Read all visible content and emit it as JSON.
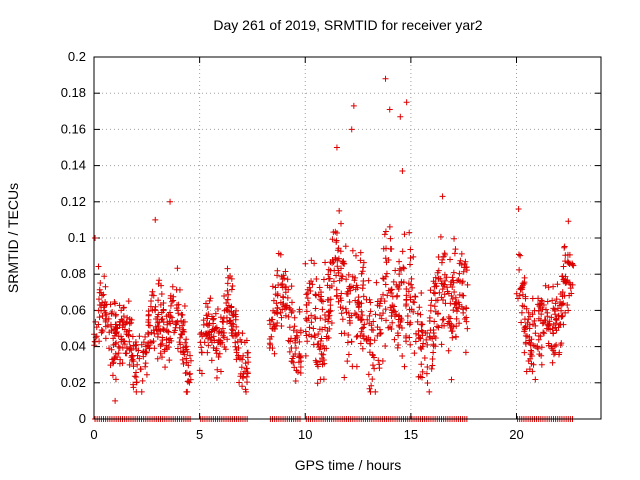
{
  "chart_data": {
    "type": "scatter",
    "title": "Day 261 of 2019, SRMTID for receiver yar2",
    "xlabel": "GPS time / hours",
    "ylabel": "SRMTID / TECUs",
    "xlim": [
      0,
      24
    ],
    "ylim": [
      0,
      0.2
    ],
    "x_ticks": [
      0,
      5,
      10,
      15,
      20
    ],
    "x_tick_labels": [
      "0",
      "5",
      "10",
      "15",
      "20"
    ],
    "y_ticks": [
      0,
      0.02,
      0.04,
      0.06,
      0.08,
      0.1,
      0.12,
      0.14,
      0.16,
      0.18,
      0.2
    ],
    "y_tick_labels": [
      "0",
      "0.02",
      "0.04",
      "0.06",
      "0.08",
      "0.1",
      "0.12",
      "0.14",
      "0.16",
      "0.18",
      "0.2"
    ],
    "grid": true,
    "marker": "+",
    "color": "#dd0000",
    "series": [
      {
        "name": "SRMTID",
        "segments": [
          {
            "start": 0.0,
            "end": 4.6,
            "base": 0.045,
            "spread": 0.03
          },
          {
            "start": 5.0,
            "end": 7.3,
            "base": 0.045,
            "spread": 0.028
          },
          {
            "start": 8.3,
            "end": 9.8,
            "base": 0.05,
            "spread": 0.03
          },
          {
            "start": 10.0,
            "end": 17.7,
            "base": 0.06,
            "spread": 0.045
          },
          {
            "start": 20.0,
            "end": 22.7,
            "base": 0.06,
            "spread": 0.03
          }
        ],
        "peaks": [
          {
            "x": 0.05,
            "y": 0.1
          },
          {
            "x": 1.0,
            "y": 0.01
          },
          {
            "x": 2.9,
            "y": 0.11
          },
          {
            "x": 3.6,
            "y": 0.12
          },
          {
            "x": 11.5,
            "y": 0.15
          },
          {
            "x": 12.3,
            "y": 0.173
          },
          {
            "x": 12.2,
            "y": 0.16
          },
          {
            "x": 13.8,
            "y": 0.188
          },
          {
            "x": 14.0,
            "y": 0.171
          },
          {
            "x": 14.5,
            "y": 0.167
          },
          {
            "x": 14.8,
            "y": 0.175
          },
          {
            "x": 14.6,
            "y": 0.137
          },
          {
            "x": 16.5,
            "y": 0.123
          },
          {
            "x": 20.1,
            "y": 0.116
          },
          {
            "x": 21.2,
            "y": 0.03
          }
        ],
        "zero_ranges": [
          [
            0.0,
            4.6
          ],
          [
            5.0,
            7.3
          ],
          [
            8.3,
            9.8
          ],
          [
            10.0,
            17.7
          ],
          [
            20.0,
            22.7
          ]
        ]
      }
    ]
  }
}
